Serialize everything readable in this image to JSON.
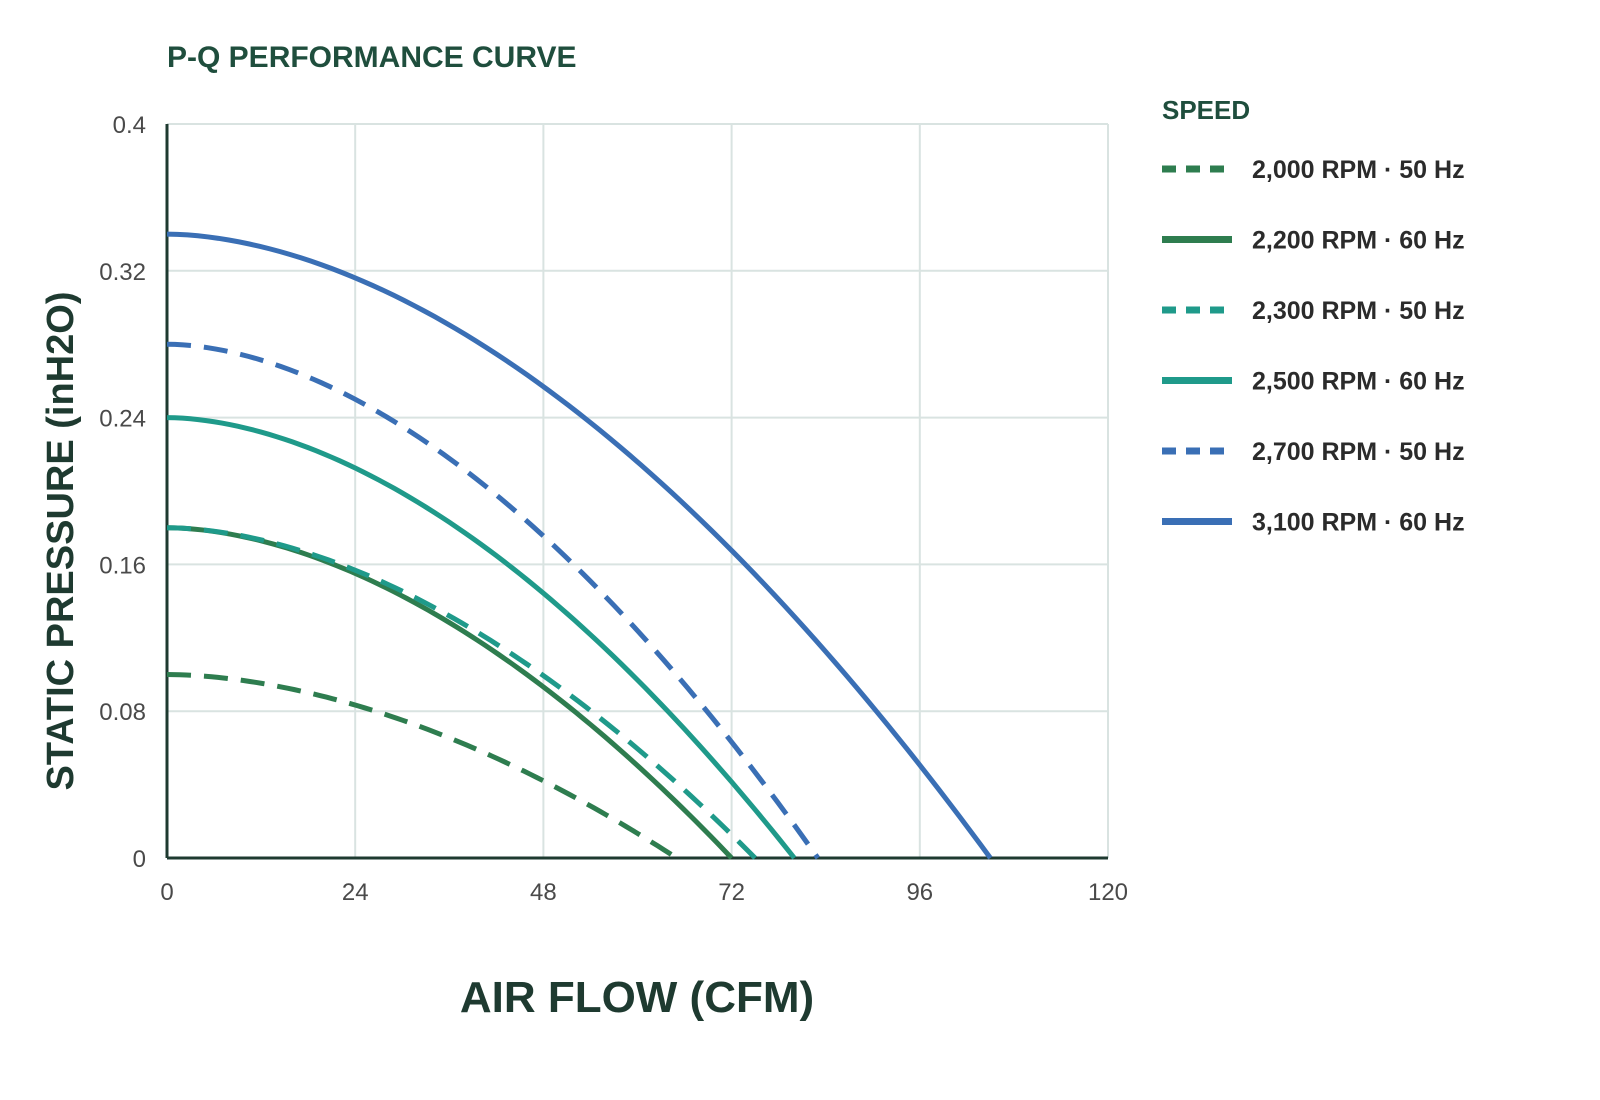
{
  "chart_data": {
    "type": "line",
    "title": "P-Q PERFORMANCE CURVE",
    "xlabel": "AIR FLOW (CFM)",
    "ylabel": "STATIC PRESSURE (inH2O)",
    "xlim": [
      0,
      120
    ],
    "ylim": [
      0,
      0.4
    ],
    "xticks": [
      "0",
      "24",
      "48",
      "72",
      "96",
      "120"
    ],
    "yticks": [
      "0",
      "0.08",
      "0.16",
      "0.24",
      "0.32",
      "0.4"
    ],
    "grid": true,
    "legend_title": "SPEED",
    "legend_position": "right",
    "series": [
      {
        "name": "2,000 RPM · 50 Hz",
        "color": "#2e7d4f",
        "style": "dashed",
        "max_flow": 65,
        "max_pressure": 0.1
      },
      {
        "name": "2,200 RPM · 60 Hz",
        "color": "#2e7d4f",
        "style": "solid",
        "max_flow": 72,
        "max_pressure": 0.18
      },
      {
        "name": "2,300 RPM · 50 Hz",
        "color": "#1f9a8a",
        "style": "dashed",
        "max_flow": 75,
        "max_pressure": 0.18
      },
      {
        "name": "2,500 RPM · 60 Hz",
        "color": "#1f9a8a",
        "style": "solid",
        "max_flow": 80,
        "max_pressure": 0.24
      },
      {
        "name": "2,700 RPM · 50 Hz",
        "color": "#3a6fb5",
        "style": "dashed",
        "max_flow": 83,
        "max_pressure": 0.28
      },
      {
        "name": "3,100 RPM · 60 Hz",
        "color": "#3a6fb5",
        "style": "solid",
        "max_flow": 105,
        "max_pressure": 0.34
      }
    ]
  }
}
